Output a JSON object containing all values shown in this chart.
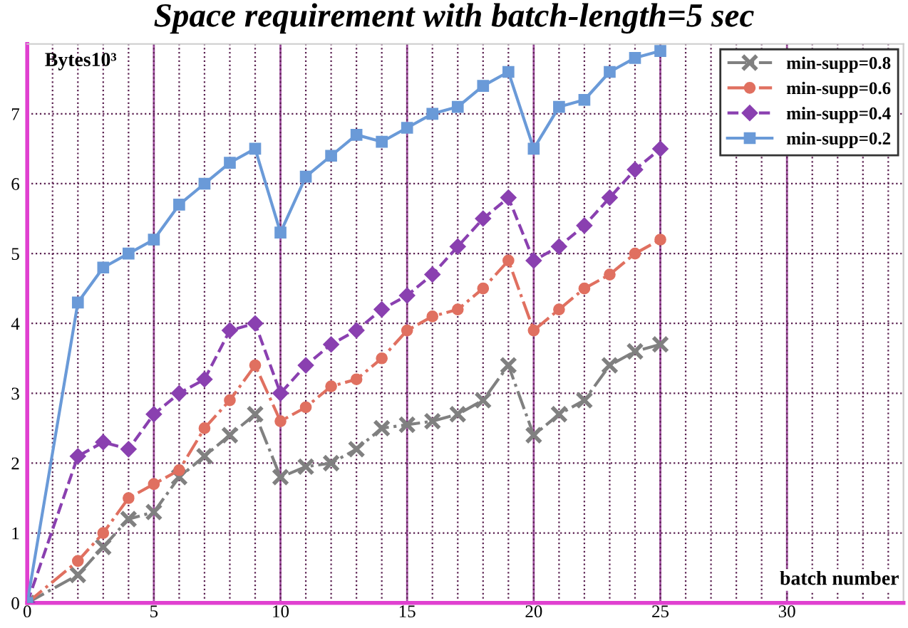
{
  "chart_data": {
    "type": "line",
    "title": "Space requirement with batch-length=5 sec",
    "xlabel": "batch number",
    "ylabel": "Bytes10³",
    "x": [
      0,
      2,
      3,
      4,
      5,
      6,
      7,
      8,
      9,
      10,
      11,
      12,
      13,
      14,
      15,
      16,
      17,
      18,
      19,
      20,
      21,
      22,
      23,
      24,
      25
    ],
    "series": [
      {
        "name": "min-supp=0.8",
        "color": "#808080",
        "marker": "cross",
        "line_style": "dashdot",
        "values": [
          0,
          0.4,
          0.8,
          1.2,
          1.3,
          1.8,
          2.1,
          2.4,
          2.7,
          1.8,
          1.95,
          2.0,
          2.2,
          2.5,
          2.55,
          2.6,
          2.7,
          2.9,
          3.4,
          2.4,
          2.7,
          2.9,
          3.4,
          3.6,
          3.7
        ]
      },
      {
        "name": "min-supp=0.6",
        "color": "#e07060",
        "marker": "circle",
        "line_style": "dashdot",
        "values": [
          0,
          0.6,
          1.0,
          1.5,
          1.7,
          1.9,
          2.5,
          2.9,
          3.4,
          2.6,
          2.8,
          3.1,
          3.2,
          3.5,
          3.9,
          4.1,
          4.2,
          4.5,
          4.9,
          3.9,
          4.2,
          4.5,
          4.7,
          5.0,
          5.2
        ]
      },
      {
        "name": "min-supp=0.4",
        "color": "#8a40b0",
        "marker": "diamond",
        "line_style": "dashed",
        "values": [
          0,
          2.1,
          2.3,
          2.2,
          2.7,
          3.0,
          3.2,
          3.9,
          4.0,
          3.0,
          3.4,
          3.7,
          3.9,
          4.2,
          4.4,
          4.7,
          5.1,
          5.5,
          5.8,
          4.9,
          5.1,
          5.4,
          5.8,
          6.2,
          6.5
        ]
      },
      {
        "name": "min-supp=0.2",
        "color": "#6a9ad8",
        "marker": "square",
        "line_style": "solid",
        "values": [
          0,
          4.3,
          4.8,
          5.0,
          5.2,
          5.7,
          6.0,
          6.3,
          6.5,
          5.3,
          6.1,
          6.4,
          6.7,
          6.6,
          6.8,
          7.0,
          7.1,
          7.4,
          7.6,
          6.5,
          7.1,
          7.2,
          7.6,
          7.8,
          7.9
        ]
      }
    ],
    "xlim": [
      0,
      34.6
    ],
    "ylim": [
      0,
      8
    ],
    "xticks": [
      0,
      {
        "value": 1,
        "label": null
      },
      {
        "value": 2,
        "label": null
      },
      {
        "value": 3,
        "label": null
      },
      {
        "value": 4,
        "label": null
      },
      5,
      {
        "value": 6,
        "label": null
      },
      {
        "value": 7,
        "label": null
      },
      {
        "value": 8,
        "label": null
      },
      {
        "value": 9,
        "label": null
      },
      10,
      {
        "value": 11,
        "label": null
      },
      {
        "value": 12,
        "label": null
      },
      {
        "value": 13,
        "label": null
      },
      {
        "value": 14,
        "label": null
      },
      15,
      {
        "value": 16,
        "label": null
      },
      {
        "value": 17,
        "label": null
      },
      {
        "value": 18,
        "label": null
      },
      {
        "value": 19,
        "label": null
      },
      20,
      {
        "value": 21,
        "label": null
      },
      {
        "value": 22,
        "label": null
      },
      {
        "value": 23,
        "label": null
      },
      {
        "value": 24,
        "label": null
      },
      25,
      {
        "value": 26,
        "label": null
      },
      {
        "value": 27,
        "label": null
      },
      {
        "value": 28,
        "label": null
      },
      {
        "value": 29,
        "label": null
      },
      30,
      {
        "value": 31,
        "label": null
      },
      {
        "value": 32,
        "label": null
      },
      {
        "value": 33,
        "label": null
      },
      {
        "value": 34,
        "label": null
      }
    ],
    "yticks": [
      0,
      1,
      2,
      3,
      4,
      5,
      6,
      7
    ],
    "grid": true,
    "legend": "top right"
  }
}
